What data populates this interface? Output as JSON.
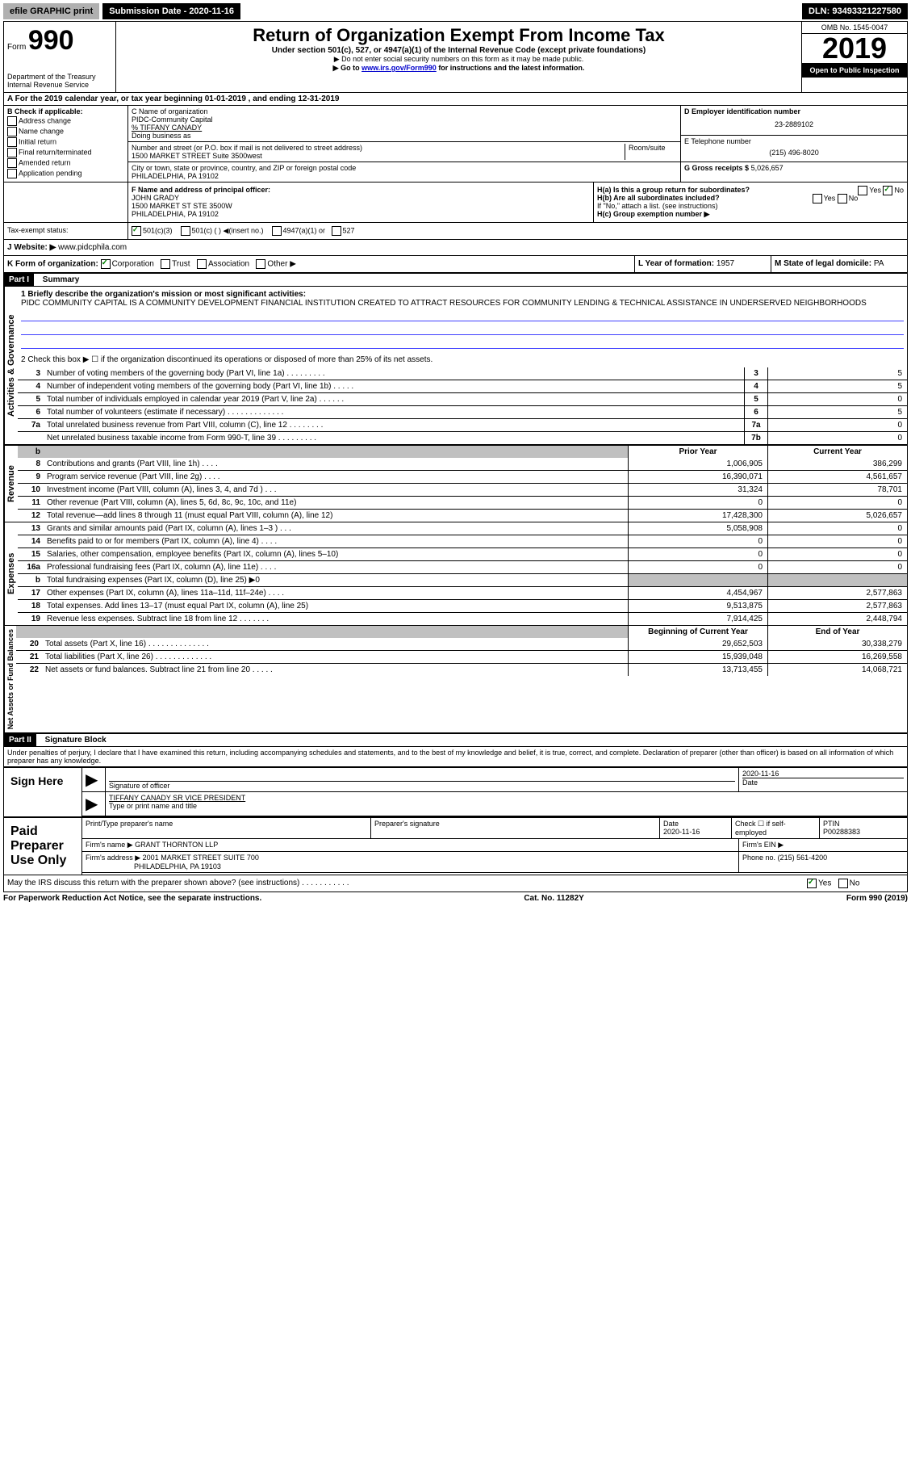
{
  "top_bar": {
    "efile": "efile GRAPHIC print",
    "sub_date_label": "Submission Date - 2020-11-16",
    "dln": "DLN: 93493321227580"
  },
  "header": {
    "form_label": "Form",
    "form_number": "990",
    "dept": "Department of the Treasury",
    "irs": "Internal Revenue Service",
    "title": "Return of Organization Exempt From Income Tax",
    "subtitle": "Under section 501(c), 527, or 4947(a)(1) of the Internal Revenue Code (except private foundations)",
    "note1": "▶ Do not enter social security numbers on this form as it may be made public.",
    "note2_pre": "▶ Go to ",
    "note2_link": "www.irs.gov/Form990",
    "note2_post": " for instructions and the latest information.",
    "omb": "OMB No. 1545-0047",
    "year": "2019",
    "open": "Open to Public Inspection"
  },
  "period": {
    "text": "A For the 2019 calendar year, or tax year beginning 01-01-2019    , and ending 12-31-2019"
  },
  "box_b": {
    "label": "B Check if applicable:",
    "opts": [
      "Address change",
      "Name change",
      "Initial return",
      "Final return/terminated",
      "Amended return",
      "Application pending"
    ]
  },
  "box_c": {
    "name_label": "C Name of organization",
    "name": "PIDC-Community Capital",
    "care_of": "% TIFFANY CANADY",
    "dba_label": "Doing business as",
    "addr_label": "Number and street (or P.O. box if mail is not delivered to street address)",
    "room_label": "Room/suite",
    "addr": "1500 MARKET STREET Suite 3500west",
    "city_label": "City or town, state or province, country, and ZIP or foreign postal code",
    "city": "PHILADELPHIA, PA  19102"
  },
  "box_d": {
    "label": "D Employer identification number",
    "ein": "23-2889102",
    "tel_label": "E Telephone number",
    "tel": "(215) 496-8020",
    "gross_label": "G Gross receipts $",
    "gross": "5,026,657"
  },
  "box_f": {
    "label": "F Name and address of principal officer:",
    "name": "JOHN GRADY",
    "addr1": "1500 MARKET ST STE 3500W",
    "addr2": "PHILADELPHIA, PA  19102"
  },
  "box_h": {
    "ha": "H(a)  Is this a group return for subordinates?",
    "hb": "H(b)  Are all subordinates included?",
    "hb_note": "If \"No,\" attach a list. (see instructions)",
    "hc": "H(c)  Group exemption number ▶"
  },
  "tax_status_label": "Tax-exempt status:",
  "tax_opts": [
    "501(c)(3)",
    "501(c) (   ) ◀(insert no.)",
    "4947(a)(1) or",
    "527"
  ],
  "website_label": "J  Website: ▶",
  "website": "www.pidcphila.com",
  "k_label": "K Form of organization:",
  "k_opts": [
    "Corporation",
    "Trust",
    "Association",
    "Other ▶"
  ],
  "l_label": "L Year of formation:",
  "l_val": "1957",
  "m_label": "M State of legal domicile:",
  "m_val": "PA",
  "part1": {
    "title": "Part I",
    "subtitle": "Summary",
    "q1_label": "1  Briefly describe the organization's mission or most significant activities:",
    "q1_val": "PIDC COMMUNITY CAPITAL IS A COMMUNITY DEVELOPMENT FINANCIAL INSTITUTION CREATED TO ATTRACT RESOURCES FOR COMMUNITY LENDING & TECHNICAL ASSISTANCE IN UNDERSERVED NEIGHBORHOODS",
    "q2": "2  Check this box ▶ ☐  if the organization discontinued its operations or disposed of more than 25% of its net assets."
  },
  "side_labels": {
    "activities": "Activities & Governance",
    "revenue": "Revenue",
    "expenses": "Expenses",
    "net": "Net Assets or Fund Balances"
  },
  "gov_lines": [
    {
      "num": "3",
      "desc": "Number of voting members of the governing body (Part VI, line 1a)  .   .   .   .   .   .   .   .   .",
      "box": "3",
      "val": "5"
    },
    {
      "num": "4",
      "desc": "Number of independent voting members of the governing body (Part VI, line 1b)  .   .   .   .   .",
      "box": "4",
      "val": "5"
    },
    {
      "num": "5",
      "desc": "Total number of individuals employed in calendar year 2019 (Part V, line 2a)  .   .   .   .   .   .",
      "box": "5",
      "val": "0"
    },
    {
      "num": "6",
      "desc": "Total number of volunteers (estimate if necessary)   .   .   .   .   .   .   .   .   .   .   .   .   .",
      "box": "6",
      "val": "5"
    },
    {
      "num": "7a",
      "desc": "Total unrelated business revenue from Part VIII, column (C), line 12  .   .   .   .   .   .   .   .",
      "box": "7a",
      "val": "0"
    },
    {
      "num": "",
      "desc": "Net unrelated business taxable income from Form 990-T, line 39   .   .   .   .   .   .   .   .   .",
      "box": "7b",
      "val": "0"
    }
  ],
  "fin_header": {
    "prior": "Prior Year",
    "curr": "Current Year"
  },
  "rev_lines": [
    {
      "num": "8",
      "desc": "Contributions and grants (Part VIII, line 1h)   .   .   .   .",
      "prior": "1,006,905",
      "curr": "386,299"
    },
    {
      "num": "9",
      "desc": "Program service revenue (Part VIII, line 2g)  .   .   .   .",
      "prior": "16,390,071",
      "curr": "4,561,657"
    },
    {
      "num": "10",
      "desc": "Investment income (Part VIII, column (A), lines 3, 4, and 7d )   .   .   .",
      "prior": "31,324",
      "curr": "78,701"
    },
    {
      "num": "11",
      "desc": "Other revenue (Part VIII, column (A), lines 5, 6d, 8c, 9c, 10c, and 11e)",
      "prior": "0",
      "curr": "0"
    },
    {
      "num": "12",
      "desc": "Total revenue—add lines 8 through 11 (must equal Part VIII, column (A), line 12)",
      "prior": "17,428,300",
      "curr": "5,026,657"
    }
  ],
  "exp_lines": [
    {
      "num": "13",
      "desc": "Grants and similar amounts paid (Part IX, column (A), lines 1–3 )  .   .   .",
      "prior": "5,058,908",
      "curr": "0"
    },
    {
      "num": "14",
      "desc": "Benefits paid to or for members (Part IX, column (A), line 4)  .   .   .   .",
      "prior": "0",
      "curr": "0"
    },
    {
      "num": "15",
      "desc": "Salaries, other compensation, employee benefits (Part IX, column (A), lines 5–10)",
      "prior": "0",
      "curr": "0"
    },
    {
      "num": "16a",
      "desc": "Professional fundraising fees (Part IX, column (A), line 11e)  .   .   .   .",
      "prior": "0",
      "curr": "0"
    },
    {
      "num": "b",
      "desc": "Total fundraising expenses (Part IX, column (D), line 25) ▶0",
      "prior": "",
      "curr": "",
      "shaded": true
    },
    {
      "num": "17",
      "desc": "Other expenses (Part IX, column (A), lines 11a–11d, 11f–24e)  .   .   .   .",
      "prior": "4,454,967",
      "curr": "2,577,863"
    },
    {
      "num": "18",
      "desc": "Total expenses. Add lines 13–17 (must equal Part IX, column (A), line 25)",
      "prior": "9,513,875",
      "curr": "2,577,863"
    },
    {
      "num": "19",
      "desc": "Revenue less expenses. Subtract line 18 from line 12  .   .   .   .   .   .   .",
      "prior": "7,914,425",
      "curr": "2,448,794"
    }
  ],
  "net_header": {
    "prior": "Beginning of Current Year",
    "curr": "End of Year"
  },
  "net_lines": [
    {
      "num": "20",
      "desc": "Total assets (Part X, line 16)  .   .   .   .   .   .   .   .   .   .   .   .   .   .",
      "prior": "29,652,503",
      "curr": "30,338,279"
    },
    {
      "num": "21",
      "desc": "Total liabilities (Part X, line 26)  .   .   .   .   .   .   .   .   .   .   .   .   .",
      "prior": "15,939,048",
      "curr": "16,269,558"
    },
    {
      "num": "22",
      "desc": "Net assets or fund balances. Subtract line 21 from line 20   .   .   .   .   .",
      "prior": "13,713,455",
      "curr": "14,068,721"
    }
  ],
  "part2": {
    "title": "Part II",
    "subtitle": "Signature Block",
    "penalties": "Under penalties of perjury, I declare that I have examined this return, including accompanying schedules and statements, and to the best of my knowledge and belief, it is true, correct, and complete. Declaration of preparer (other than officer) is based on all information of which preparer has any knowledge."
  },
  "sign": {
    "here": "Sign Here",
    "sig_label": "Signature of officer",
    "date": "2020-11-16",
    "date_label": "Date",
    "name": "TIFFANY CANADY SR VICE PRESIDENT",
    "name_label": "Type or print name and title"
  },
  "paid": {
    "label": "Paid Preparer Use Only",
    "print_label": "Print/Type preparer's name",
    "sig_label": "Preparer's signature",
    "date_label": "Date",
    "date": "2020-11-16",
    "check_label": "Check ☐ if self-employed",
    "ptin_label": "PTIN",
    "ptin": "P00288383",
    "firm_name_label": "Firm's name   ▶",
    "firm_name": "GRANT THORNTON LLP",
    "firm_ein_label": "Firm's EIN ▶",
    "firm_addr_label": "Firm's address ▶",
    "firm_addr1": "2001 MARKET STREET SUITE 700",
    "firm_addr2": "PHILADELPHIA, PA  19103",
    "phone_label": "Phone no.",
    "phone": "(215) 561-4200"
  },
  "irs_discuss": "May the IRS discuss this return with the preparer shown above? (see instructions)   .   .   .   .   .   .   .   .   .   .   .",
  "footer": {
    "left": "For Paperwork Reduction Act Notice, see the separate instructions.",
    "mid": "Cat. No. 11282Y",
    "right": "Form 990 (2019)"
  },
  "yes": "Yes",
  "no": "No"
}
